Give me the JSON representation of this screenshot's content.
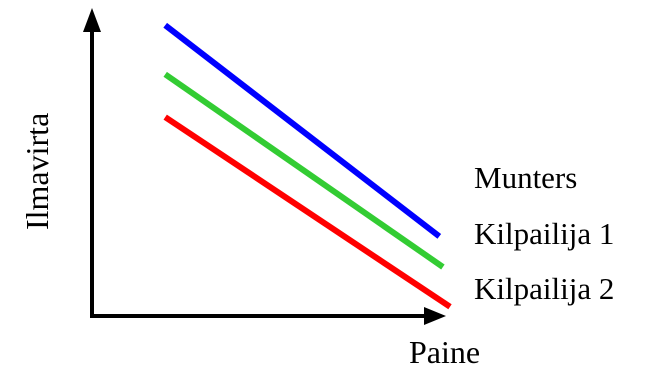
{
  "chart_data": {
    "type": "line",
    "xlabel": "Paine",
    "ylabel": "Ilmavirta",
    "grid": false,
    "axis_ticks": false,
    "legend": "right, beside line ends",
    "xlim": [
      0,
      10
    ],
    "ylim": [
      0,
      10
    ],
    "series": [
      {
        "name": "Munters",
        "color": "#0000ff",
        "x": [
          2.0,
          9.7
        ],
        "y": [
          9.5,
          2.6
        ]
      },
      {
        "name": "Kilpailija 1",
        "color": "#33cc33",
        "x": [
          2.0,
          9.8
        ],
        "y": [
          7.9,
          1.6
        ]
      },
      {
        "name": "Kilpailija 2",
        "color": "#ff0000",
        "x": [
          2.0,
          10.0
        ],
        "y": [
          6.5,
          0.3
        ]
      }
    ]
  }
}
